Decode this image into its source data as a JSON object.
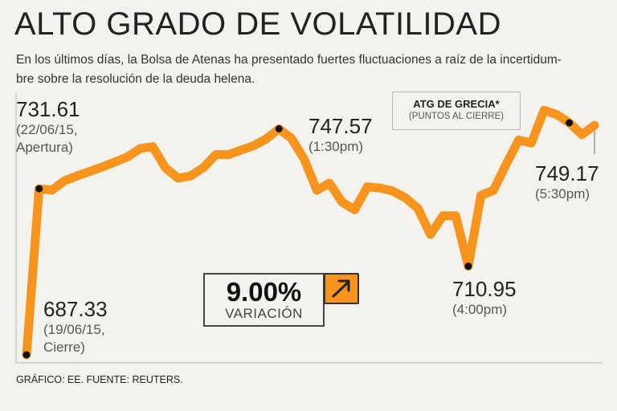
{
  "title": "ALTO GRADO DE VOLATILIDAD",
  "subtitle_line1": "En los últimos días, la Bolsa de Atenas ha presentado fuertes fluctuaciones a raíz de la incertidum-",
  "subtitle_line2": "bre sobre la resolución de la deuda helena.",
  "legend": {
    "title": "ATG DE GRECIA*",
    "subtitle": "(PUNTOS AL CIERRE)"
  },
  "variation": {
    "value": "9.00%",
    "label": "VARIACIÓN",
    "icon": "arrow-up-right-icon"
  },
  "footer": "GRÁFICO: EE. FUENTE: REUTERS.",
  "colors": {
    "line": "#f7941d",
    "background": "#f3f2ed",
    "marker": "#111111",
    "grid": "#cccccc"
  },
  "chart_data": {
    "type": "line",
    "title": "ALTO GRADO DE VOLATILIDAD",
    "series": [
      {
        "name": "ATG DE GRECIA*",
        "x": [
          0,
          1,
          2,
          3,
          4,
          5,
          6,
          7,
          8,
          9,
          10,
          11,
          12,
          13,
          14,
          15,
          16,
          17,
          18,
          19,
          20,
          21,
          22,
          23,
          24,
          25,
          26,
          27,
          28,
          29,
          30,
          31,
          32,
          33,
          34,
          35,
          36,
          37,
          38,
          39,
          40,
          41,
          42,
          43,
          44,
          45
        ],
        "values": [
          687.33,
          731.61,
          731.2,
          733.7,
          735.0,
          736.2,
          737.4,
          738.7,
          740.1,
          742.3,
          742.8,
          737.2,
          734.4,
          735.0,
          737.2,
          740.7,
          740.7,
          741.9,
          743.1,
          744.9,
          747.57,
          745.0,
          739.5,
          731.2,
          733.1,
          728.0,
          726.0,
          732.1,
          731.8,
          731.0,
          729.2,
          726.4,
          719.4,
          724.4,
          724.4,
          710.95,
          729.8,
          731.2,
          738.1,
          744.6,
          743.8,
          752.5,
          751.4,
          749.17,
          746.0,
          748.5
        ]
      }
    ],
    "annotations": [
      {
        "value": "731.61",
        "note": "(22/06/15,",
        "note2": "Apertura)"
      },
      {
        "value": "687.33",
        "note": "(19/06/15,",
        "note2": "Cierre)"
      },
      {
        "value": "747.57",
        "note": "(1:30pm)"
      },
      {
        "value": "710.95",
        "note": "(4:00pm)"
      },
      {
        "value": "749.17",
        "note": "(5:30pm)"
      }
    ],
    "ylim": [
      685,
      755
    ],
    "grid": false
  }
}
